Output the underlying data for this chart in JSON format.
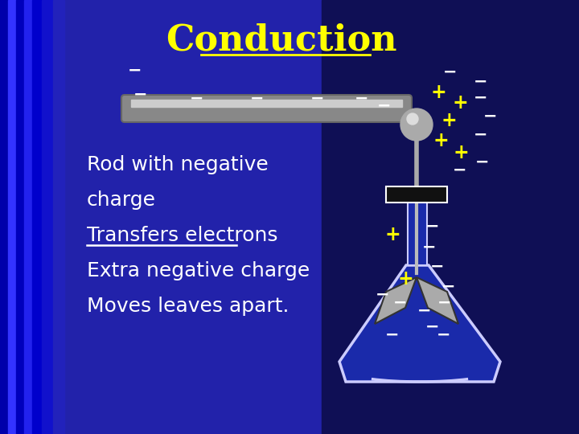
{
  "title": "Conduction",
  "title_color": "#FFFF00",
  "title_fontsize": 32,
  "minus_color": "#FFFFFF",
  "plus_color": "#FFFF00",
  "text_lines": [
    [
      "Rod with negative",
      false
    ],
    [
      "charge",
      false
    ],
    [
      "Transfers electrons",
      true
    ],
    [
      "Extra negative charge",
      false
    ],
    [
      "Moves leaves apart.",
      false
    ]
  ],
  "text_color": "#FFFFFF",
  "text_fontsize": 18,
  "bg_main": "#1A1A8C",
  "bg_left": "#2222AA",
  "bg_right": "#0A0A55",
  "rod_color": "#888888",
  "rod_highlight": "#CCCCCC",
  "sphere_color": "#AAAAAA",
  "sphere_highlight": "#DDDDDD",
  "stopper_color": "#111111",
  "flask_fill": "#1A2AAA",
  "flask_edge": "#CCCCFF",
  "leaf_color": "#AAAAAA",
  "stem_color": "#AAAAAA"
}
